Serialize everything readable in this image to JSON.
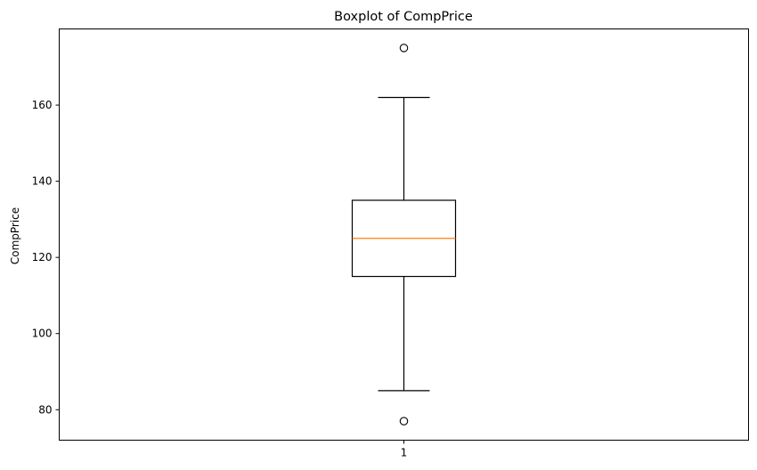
{
  "chart_data": {
    "type": "boxplot",
    "title": "Boxplot of CompPrice",
    "xlabel": "",
    "ylabel": "CompPrice",
    "categories": [
      "1"
    ],
    "ylim": [
      72,
      180
    ],
    "yticks": [
      80,
      100,
      120,
      140,
      160
    ],
    "grid": false,
    "boxes": [
      {
        "category": "1",
        "whisker_low": 85,
        "q1": 115,
        "median": 125,
        "q3": 135,
        "whisker_high": 162,
        "outliers": [
          77,
          175
        ]
      }
    ],
    "colors": {
      "median": "#ff7f0e",
      "box": "#000000"
    }
  }
}
